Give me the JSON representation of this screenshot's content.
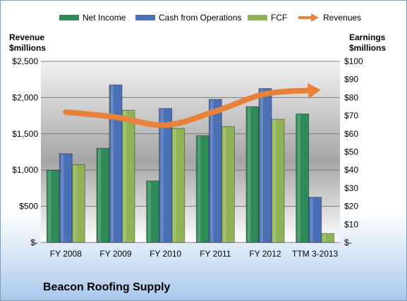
{
  "chart_data": {
    "type": "bar",
    "categories": [
      "FY 2008",
      "FY 2009",
      "FY 2010",
      "FY 2011",
      "FY 2012",
      "TTM 3-2013"
    ],
    "series": [
      {
        "name": "Net Income",
        "axis": "right",
        "values": [
          40,
          52,
          34,
          59,
          75,
          71
        ],
        "color": "#2e8b57"
      },
      {
        "name": "Cash from Operations",
        "axis": "right",
        "values": [
          49,
          87,
          74,
          79,
          85,
          25
        ],
        "color": "#4a6fb5"
      },
      {
        "name": "FCF",
        "axis": "right",
        "values": [
          43,
          73,
          63,
          64,
          68,
          5
        ],
        "color": "#8fb356"
      }
    ],
    "line_series": {
      "name": "Revenues",
      "axis": "left",
      "values": [
        1800,
        1730,
        1620,
        1810,
        2050,
        2100
      ],
      "color": "#e8823a"
    },
    "left_axis": {
      "title_line1": "Revenue",
      "title_line2": "$millions",
      "range": [
        0,
        2500
      ],
      "tick_labels": [
        "$-",
        "$500",
        "$1,000",
        "$1,500",
        "$2,000",
        "$2,500"
      ]
    },
    "right_axis": {
      "title_line1": "Earnings",
      "title_line2": "$millions",
      "range": [
        0,
        100
      ],
      "tick_labels": [
        "$-",
        "$10",
        "$20",
        "$30",
        "$40",
        "$50",
        "$60",
        "$70",
        "$80",
        "$90",
        "$100"
      ]
    },
    "grid": true,
    "legend_position": "top",
    "company": "Beacon Roofing Supply"
  }
}
